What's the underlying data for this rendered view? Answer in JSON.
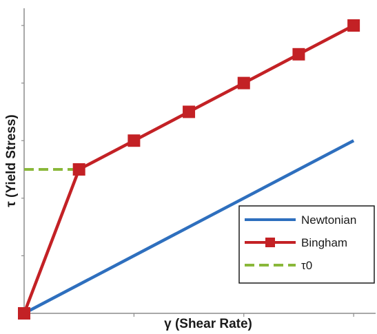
{
  "chart_data": {
    "type": "line",
    "xlabel": "γ (Shear Rate)",
    "ylabel": "τ (Yield Stress)",
    "xlim": [
      0,
      1.6
    ],
    "ylim": [
      0,
      1.0
    ],
    "x_ticks": [
      0.5,
      1.0,
      1.5
    ],
    "y_ticks": [
      0.2,
      0.4,
      0.6,
      0.8,
      1.0
    ],
    "grid": false,
    "legend_position": "bottom-right",
    "series": [
      {
        "name": "Newtonian",
        "color": "#2e6fbe",
        "marker": "none",
        "dash": "solid",
        "x": [
          0,
          1.5
        ],
        "y": [
          0,
          0.6
        ]
      },
      {
        "name": "Bingham",
        "color": "#c32125",
        "marker": "square",
        "dash": "solid",
        "x": [
          0,
          0.25,
          0.5,
          0.75,
          1.0,
          1.25,
          1.5
        ],
        "y": [
          0,
          0.5,
          0.6,
          0.7,
          0.8,
          0.9,
          1.0
        ]
      },
      {
        "name": "τ0",
        "color": "#8ab83a",
        "marker": "none",
        "dash": "dashed",
        "x": [
          0,
          0.25
        ],
        "y": [
          0.5,
          0.5
        ]
      }
    ]
  }
}
